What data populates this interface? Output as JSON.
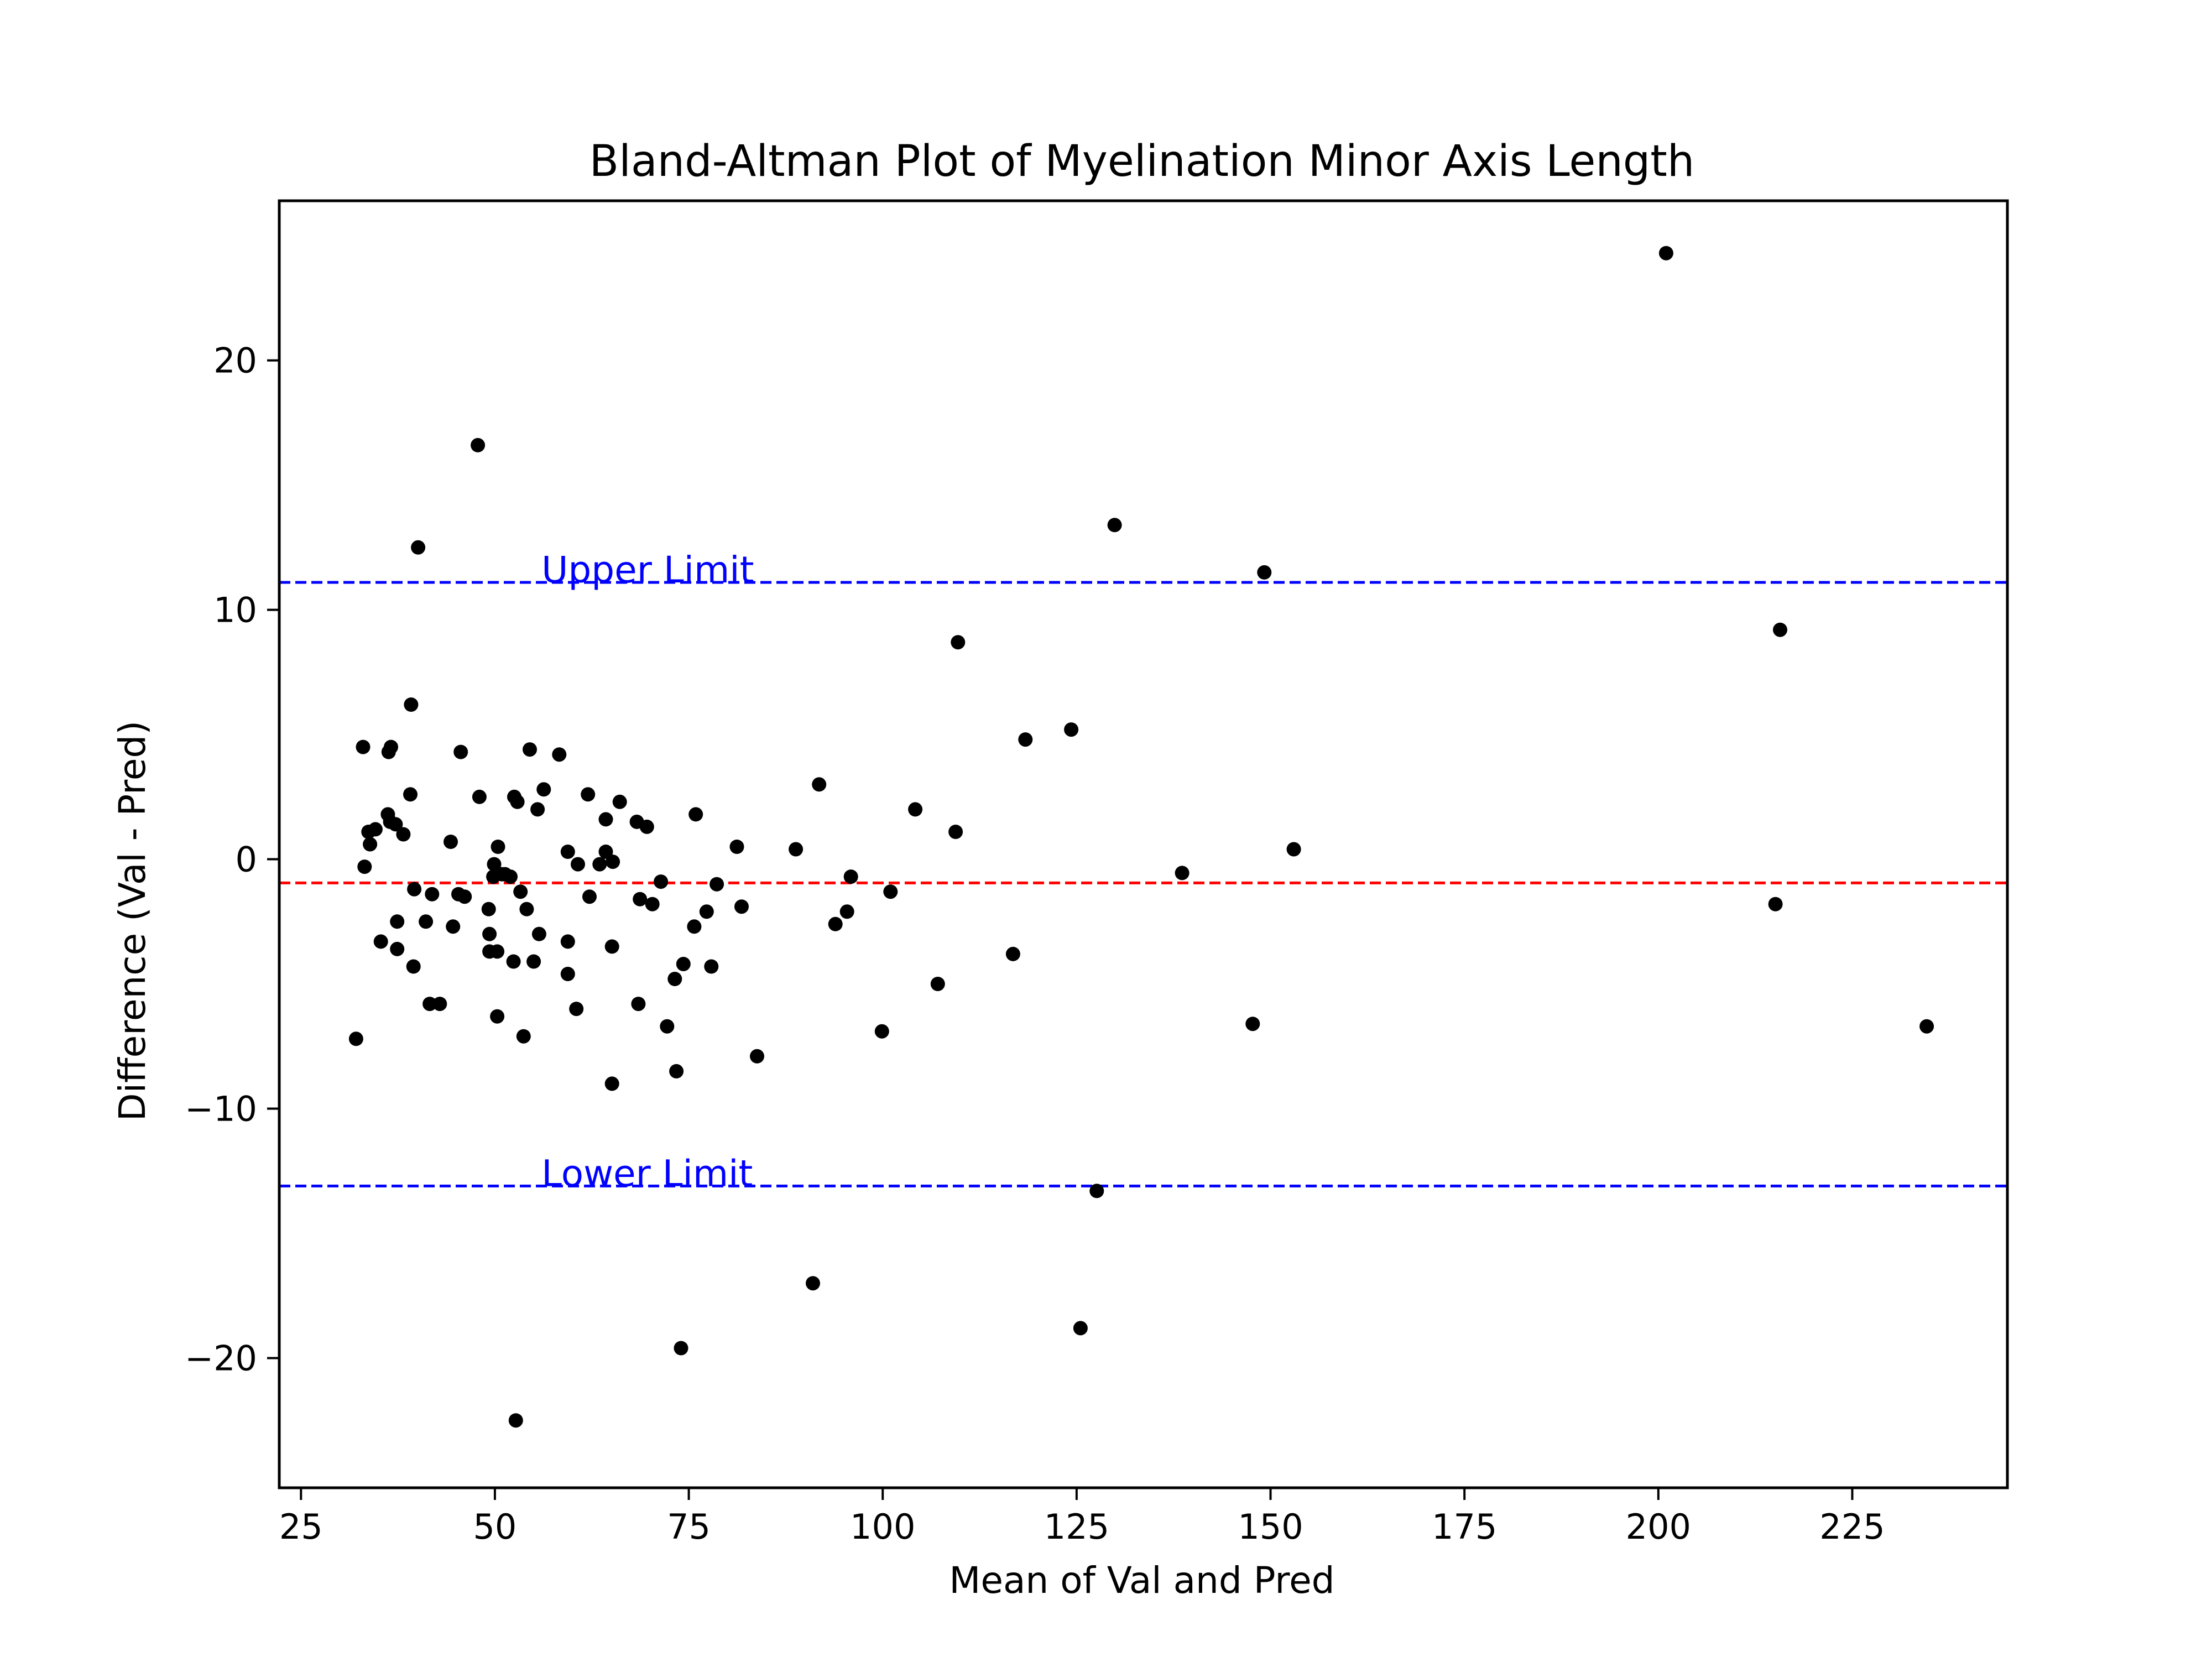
{
  "chart_data": {
    "type": "scatter",
    "title": "Bland-Altman Plot of Myelination Minor Axis Length",
    "xlabel": "Mean of Val and Pred",
    "ylabel": "Difference (Val - Pred)",
    "xlim": [
      22.2,
      245.0
    ],
    "ylim": [
      -25.2,
      26.4
    ],
    "x_ticks": [
      25,
      50,
      75,
      100,
      125,
      150,
      175,
      200,
      225
    ],
    "y_ticks": [
      -20,
      -10,
      0,
      10,
      20
    ],
    "x_tick_labels": [
      "25",
      "50",
      "75",
      "100",
      "125",
      "150",
      "175",
      "200",
      "225"
    ],
    "y_tick_labels": [
      "−20",
      "−10",
      "0",
      "10",
      "20"
    ],
    "grid": false,
    "legend": null,
    "colors": {
      "points": "#000000",
      "mean_line": "#ff0000",
      "limit_lines": "#0000ff",
      "annotation_text": "#0000ff"
    },
    "reference_lines": [
      {
        "role": "upper-limit",
        "y": 11.1,
        "style": "dashed",
        "color": "#0000ff"
      },
      {
        "role": "mean-difference",
        "y": -0.95,
        "style": "dashed",
        "color": "#ff0000"
      },
      {
        "role": "lower-limit",
        "y": -13.1,
        "style": "dashed",
        "color": "#0000ff"
      }
    ],
    "annotations": [
      {
        "text": "Upper Limit",
        "x": 56.0,
        "y": 11.1,
        "color": "#0000ff"
      },
      {
        "text": "Lower Limit",
        "x": 56.0,
        "y": -13.1,
        "color": "#0000ff"
      }
    ],
    "points": [
      [
        201.0,
        24.3
      ],
      [
        47.8,
        16.6
      ],
      [
        40.1,
        12.5
      ],
      [
        129.9,
        13.4
      ],
      [
        149.2,
        11.5
      ],
      [
        215.7,
        9.2
      ],
      [
        109.7,
        8.7
      ],
      [
        39.2,
        6.2
      ],
      [
        118.4,
        4.8
      ],
      [
        124.3,
        5.2
      ],
      [
        33.0,
        4.5
      ],
      [
        36.3,
        4.3
      ],
      [
        36.6,
        4.5
      ],
      [
        45.6,
        4.3
      ],
      [
        54.5,
        4.4
      ],
      [
        58.3,
        4.2
      ],
      [
        39.1,
        2.6
      ],
      [
        48.0,
        2.5
      ],
      [
        52.5,
        2.5
      ],
      [
        56.3,
        2.8
      ],
      [
        62.0,
        2.6
      ],
      [
        66.1,
        2.3
      ],
      [
        91.8,
        3.0
      ],
      [
        52.9,
        2.3
      ],
      [
        55.5,
        2.0
      ],
      [
        75.9,
        1.8
      ],
      [
        104.2,
        2.0
      ],
      [
        36.2,
        1.8
      ],
      [
        36.5,
        1.5
      ],
      [
        37.2,
        1.4
      ],
      [
        33.7,
        1.1
      ],
      [
        34.6,
        1.2
      ],
      [
        38.2,
        1.0
      ],
      [
        64.3,
        1.6
      ],
      [
        68.3,
        1.5
      ],
      [
        69.6,
        1.3
      ],
      [
        109.4,
        1.1
      ],
      [
        33.9,
        0.6
      ],
      [
        44.3,
        0.7
      ],
      [
        50.4,
        0.5
      ],
      [
        59.4,
        0.3
      ],
      [
        64.3,
        0.3
      ],
      [
        81.2,
        0.5
      ],
      [
        88.8,
        0.4
      ],
      [
        153.0,
        0.4
      ],
      [
        33.2,
        -0.3
      ],
      [
        49.9,
        -0.2
      ],
      [
        60.7,
        -0.2
      ],
      [
        63.5,
        -0.2
      ],
      [
        65.2,
        -0.1
      ],
      [
        138.6,
        -0.55
      ],
      [
        49.8,
        -0.7
      ],
      [
        50.9,
        -0.6
      ],
      [
        52.0,
        -0.7
      ],
      [
        51.3,
        -0.6
      ],
      [
        95.9,
        -0.7
      ],
      [
        71.4,
        -0.9
      ],
      [
        78.6,
        -1.0
      ],
      [
        39.6,
        -1.2
      ],
      [
        41.9,
        -1.4
      ],
      [
        45.3,
        -1.4
      ],
      [
        46.1,
        -1.5
      ],
      [
        53.3,
        -1.3
      ],
      [
        62.2,
        -1.5
      ],
      [
        68.7,
        -1.6
      ],
      [
        101.0,
        -1.3
      ],
      [
        215.1,
        -1.8
      ],
      [
        49.2,
        -2.0
      ],
      [
        54.1,
        -2.0
      ],
      [
        70.3,
        -1.8
      ],
      [
        77.3,
        -2.1
      ],
      [
        81.8,
        -1.9
      ],
      [
        95.4,
        -2.1
      ],
      [
        37.4,
        -2.5
      ],
      [
        41.1,
        -2.5
      ],
      [
        44.6,
        -2.7
      ],
      [
        75.7,
        -2.7
      ],
      [
        93.9,
        -2.6
      ],
      [
        35.3,
        -3.3
      ],
      [
        49.3,
        -3.0
      ],
      [
        55.7,
        -3.0
      ],
      [
        59.4,
        -3.3
      ],
      [
        37.4,
        -3.6
      ],
      [
        65.1,
        -3.5
      ],
      [
        49.3,
        -3.7
      ],
      [
        50.3,
        -3.7
      ],
      [
        116.8,
        -3.8
      ],
      [
        39.5,
        -4.3
      ],
      [
        52.4,
        -4.1
      ],
      [
        55.0,
        -4.1
      ],
      [
        74.3,
        -4.2
      ],
      [
        77.9,
        -4.3
      ],
      [
        59.4,
        -4.6
      ],
      [
        73.2,
        -4.8
      ],
      [
        107.1,
        -5.0
      ],
      [
        41.6,
        -5.8
      ],
      [
        42.9,
        -5.8
      ],
      [
        68.5,
        -5.8
      ],
      [
        50.3,
        -6.3
      ],
      [
        60.5,
        -6.0
      ],
      [
        72.2,
        -6.7
      ],
      [
        99.9,
        -6.9
      ],
      [
        147.7,
        -6.6
      ],
      [
        234.6,
        -6.7
      ],
      [
        32.1,
        -7.2
      ],
      [
        53.7,
        -7.1
      ],
      [
        83.8,
        -7.9
      ],
      [
        73.4,
        -8.5
      ],
      [
        65.1,
        -9.0
      ],
      [
        127.6,
        -13.3
      ],
      [
        91.0,
        -17.0
      ],
      [
        125.5,
        -18.8
      ],
      [
        74.0,
        -19.6
      ],
      [
        52.7,
        -22.5
      ]
    ]
  }
}
